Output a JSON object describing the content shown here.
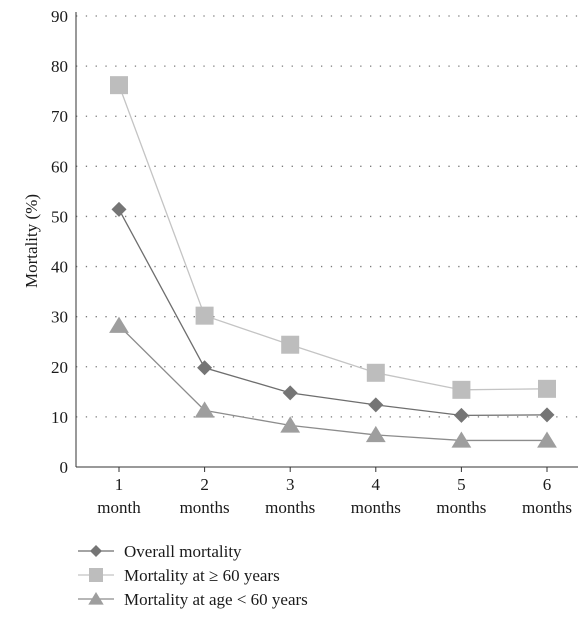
{
  "chart_data": {
    "type": "line",
    "categories": [
      [
        "1",
        "month"
      ],
      [
        "2",
        "months"
      ],
      [
        "3",
        "months"
      ],
      [
        "4",
        "months"
      ],
      [
        "5",
        "months"
      ],
      [
        "6",
        "months"
      ]
    ],
    "ylabel": "Mortality (%)",
    "ylim": [
      0,
      90
    ],
    "yticks": [
      0,
      10,
      20,
      30,
      40,
      50,
      60,
      70,
      80,
      90
    ],
    "grid": "horizontal-dotted",
    "legend_position": "bottom-left",
    "series": [
      {
        "name": "Mortality at ≥ 60 years",
        "marker": "square",
        "color": "#bdbdbd",
        "line_color": "#c4c4c4",
        "values": [
          76.2,
          30.2,
          24.4,
          18.8,
          15.4,
          15.6
        ]
      },
      {
        "name": "Overall mortality",
        "marker": "diamond",
        "color": "#757575",
        "line_color": "#6e6e6e",
        "values": [
          51.4,
          19.8,
          14.8,
          12.4,
          10.3,
          10.4
        ]
      },
      {
        "name": "Mortality at age < 60 years",
        "marker": "triangle",
        "color": "#9e9e9e",
        "line_color": "#8c8c8c",
        "values": [
          28.2,
          11.3,
          8.3,
          6.4,
          5.3,
          5.3
        ]
      }
    ],
    "legend_order": [
      1,
      0,
      2
    ]
  }
}
